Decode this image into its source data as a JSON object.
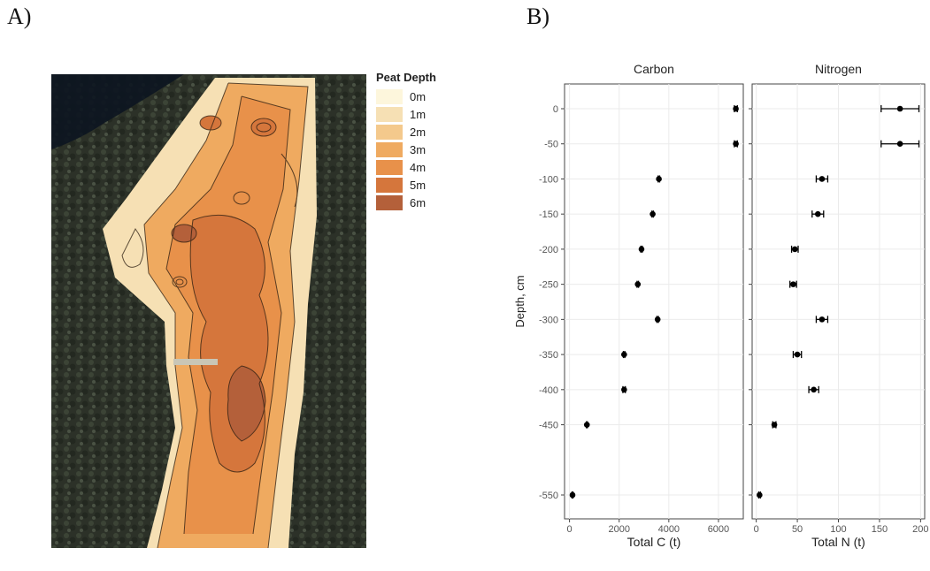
{
  "panels": {
    "a_label": "A)",
    "b_label": "B)"
  },
  "legend": {
    "title": "Peat Depth",
    "items": [
      {
        "label": "0m",
        "color": "#fdf6dc"
      },
      {
        "label": "1m",
        "color": "#f6e0b4"
      },
      {
        "label": "2m",
        "color": "#f4c98c"
      },
      {
        "label": "3m",
        "color": "#efaa60"
      },
      {
        "label": "4m",
        "color": "#e8914a"
      },
      {
        "label": "5m",
        "color": "#d5763c"
      },
      {
        "label": "6m",
        "color": "#b4603a"
      }
    ]
  },
  "chart_data": {
    "type": "scatter",
    "ylabel": "Depth, cm",
    "depth_ticks": [
      0,
      -50,
      -100,
      -150,
      -200,
      -250,
      -300,
      -350,
      -400,
      -450,
      -550
    ],
    "panels": [
      {
        "title": "Carbon",
        "xlabel": "Total C (t)",
        "xlim": [
          -200,
          7000
        ],
        "xticks": [
          0,
          2000,
          4000,
          6000
        ],
        "points": [
          {
            "depth": 0,
            "value": 6700,
            "err": 60
          },
          {
            "depth": -50,
            "value": 6700,
            "err": 60
          },
          {
            "depth": -100,
            "value": 3600,
            "err": 30
          },
          {
            "depth": -150,
            "value": 3350,
            "err": 30
          },
          {
            "depth": -200,
            "value": 2900,
            "err": 30
          },
          {
            "depth": -250,
            "value": 2750,
            "err": 30
          },
          {
            "depth": -300,
            "value": 3550,
            "err": 30
          },
          {
            "depth": -350,
            "value": 2200,
            "err": 30
          },
          {
            "depth": -400,
            "value": 2200,
            "err": 50
          },
          {
            "depth": -450,
            "value": 700,
            "err": 20
          },
          {
            "depth": -550,
            "value": 120,
            "err": 20
          }
        ]
      },
      {
        "title": "Nitrogen",
        "xlabel": "Total N (t)",
        "xlim": [
          -5,
          205
        ],
        "xticks": [
          0,
          50,
          100,
          150,
          200
        ],
        "points": [
          {
            "depth": 0,
            "value": 175,
            "err": 23
          },
          {
            "depth": -50,
            "value": 175,
            "err": 23
          },
          {
            "depth": -100,
            "value": 80,
            "err": 7
          },
          {
            "depth": -150,
            "value": 75,
            "err": 7
          },
          {
            "depth": -200,
            "value": 47,
            "err": 4
          },
          {
            "depth": -250,
            "value": 45,
            "err": 4
          },
          {
            "depth": -300,
            "value": 80,
            "err": 7
          },
          {
            "depth": -350,
            "value": 50,
            "err": 5
          },
          {
            "depth": -400,
            "value": 70,
            "err": 6
          },
          {
            "depth": -450,
            "value": 22,
            "err": 2
          },
          {
            "depth": -550,
            "value": 4,
            "err": 1
          }
        ]
      }
    ]
  }
}
